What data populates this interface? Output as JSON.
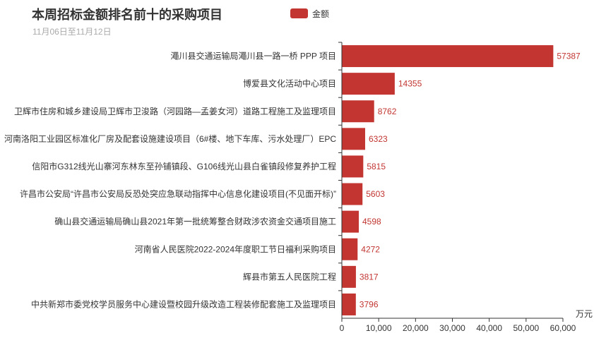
{
  "chart_data": {
    "type": "bar",
    "orientation": "horizontal",
    "title": "本周招标金额排名前十的采购项目",
    "subtitle": "11月06日至11月12日",
    "x_unit": "万元",
    "xlim": [
      0,
      60000
    ],
    "x_ticks": [
      "0",
      "10,000",
      "20,000",
      "30,000",
      "40,000",
      "50,000",
      "60,000"
    ],
    "legend_position": "top-center",
    "grid": false,
    "series": [
      {
        "name": "金额",
        "color": "#c23531",
        "values": [
          57387,
          14355,
          8762,
          6323,
          5815,
          5603,
          4598,
          4272,
          3817,
          3796
        ]
      }
    ],
    "categories": [
      "澠川县交通运输局澠川县一路一桥 PPP 项目",
      "博爱县文化活动中心项目",
      "卫辉市住房和城乡建设局卫辉市卫浚路（河园路—孟姜女河）道路工程施工及监理项目",
      "河南洛阳工业园区标准化厂房及配套设施建设项目（6#楼、地下车库、污水处理厂）EPC",
      "信阳市G312线光山寨河东林东至孙铺镇段、G106线光山县白雀镇段修复养护工程",
      "许昌市公安局“许昌市公安局反恐处突应急联动指挥中心信息化建设项目(不见面开标)”",
      "确山县交通运输局确山县2021年第一批统筹整合财政涉农资金交通项目施工",
      "河南省人民医院2022-2024年度职工节日福利采购项目",
      "辉县市第五人民医院工程",
      "中共新郑市委党校学员服务中心建设暨校园升级改造工程装修配套施工及监理项目"
    ],
    "value_labels": [
      "57387",
      "14355",
      "8762",
      "6323",
      "5815",
      "5603",
      "4598",
      "4272",
      "3817",
      "3796"
    ]
  }
}
